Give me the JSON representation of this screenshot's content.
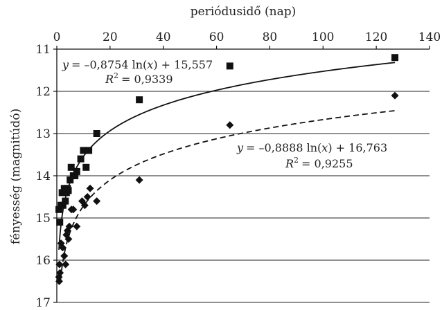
{
  "chart_data": {
    "type": "scatter",
    "xlabel": "periódusidő (nap)",
    "ylabel": "fényesség (magnitúdó)",
    "x_axis_position": "top",
    "y_inverted": true,
    "xlim": [
      0,
      140
    ],
    "ylim": [
      11,
      17
    ],
    "x_ticks": [
      0,
      20,
      40,
      60,
      80,
      100,
      120,
      140
    ],
    "y_ticks": [
      11,
      12,
      13,
      14,
      15,
      16,
      17
    ],
    "grid": "horizontal",
    "series": [
      {
        "marker": "square",
        "color": "#111111",
        "points": [
          [
            0.8,
            14.8
          ],
          [
            1.1,
            15.1
          ],
          [
            1.6,
            14.7
          ],
          [
            2.0,
            14.4
          ],
          [
            2.3,
            14.7
          ],
          [
            2.8,
            14.3
          ],
          [
            3.2,
            14.6
          ],
          [
            3.6,
            14.4
          ],
          [
            4.0,
            14.3
          ],
          [
            4.3,
            14.35
          ],
          [
            5.0,
            14.1
          ],
          [
            5.4,
            13.8
          ],
          [
            6.2,
            14.0
          ],
          [
            6.8,
            14.0
          ],
          [
            7.5,
            13.9
          ],
          [
            9.0,
            13.6
          ],
          [
            10.0,
            13.4
          ],
          [
            11.0,
            13.8
          ],
          [
            12.0,
            13.4
          ],
          [
            15.0,
            13.0
          ],
          [
            31.0,
            12.2
          ],
          [
            65.0,
            11.4
          ],
          [
            127.0,
            11.2
          ]
        ]
      },
      {
        "marker": "diamond",
        "color": "#111111",
        "points": [
          [
            0.8,
            16.4
          ],
          [
            0.9,
            16.5
          ],
          [
            1.0,
            16.1
          ],
          [
            1.2,
            16.3
          ],
          [
            1.6,
            15.6
          ],
          [
            2.2,
            15.7
          ],
          [
            2.8,
            15.9
          ],
          [
            3.3,
            16.1
          ],
          [
            3.6,
            15.4
          ],
          [
            4.0,
            15.3
          ],
          [
            4.4,
            15.5
          ],
          [
            4.7,
            15.2
          ],
          [
            5.5,
            14.8
          ],
          [
            6.2,
            14.8
          ],
          [
            7.5,
            15.2
          ],
          [
            9.5,
            14.6
          ],
          [
            10.5,
            14.7
          ],
          [
            11.5,
            14.5
          ],
          [
            12.5,
            14.3
          ],
          [
            15.0,
            14.6
          ],
          [
            31.0,
            14.1
          ],
          [
            65.0,
            12.8
          ],
          [
            127.0,
            12.1
          ]
        ]
      }
    ],
    "trendlines": [
      {
        "style": "solid",
        "slope": -0.8754,
        "intercept": 15.557,
        "x_from": 0.8,
        "x_to": 127,
        "equation_label": "= –0,8754 ln(",
        "equation_tail": ") + 15,557",
        "r2_label": "= 0,9339"
      },
      {
        "style": "dashed",
        "slope": -0.8888,
        "intercept": 16.763,
        "x_from": 1.4,
        "x_to": 127,
        "equation_label": "= –0,8888 ln(",
        "equation_tail": ") + 16,763",
        "r2_label": "= 0,9255"
      }
    ],
    "eq_vars": {
      "y": "y",
      "x": "x",
      "r": "R",
      "two": "2"
    }
  }
}
